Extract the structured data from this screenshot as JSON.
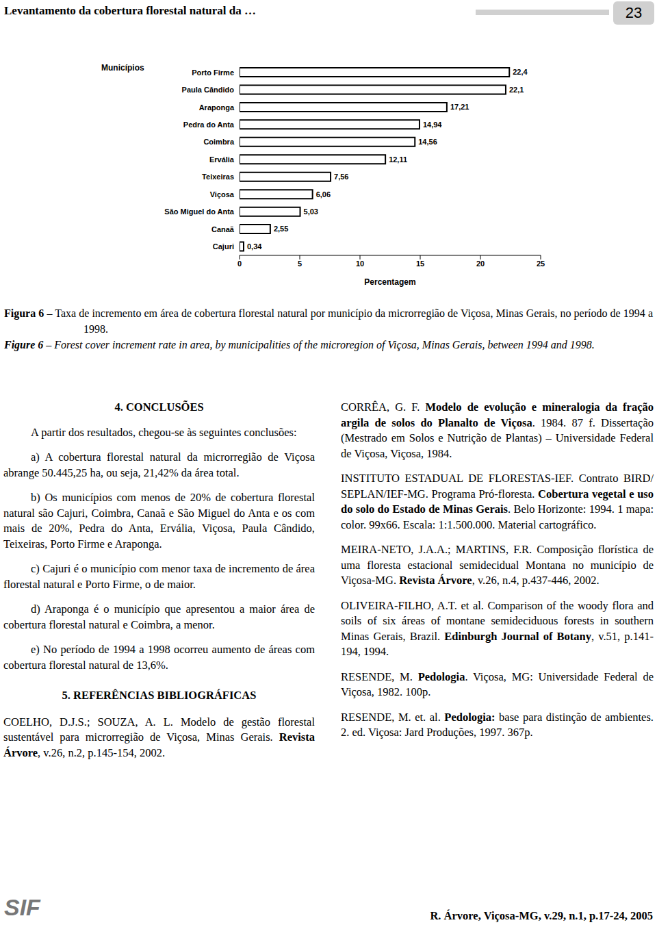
{
  "header": {
    "running_title": "Levantamento da cobertura florestal natural da …",
    "page": 23
  },
  "chart_data": {
    "type": "bar",
    "orientation": "horizontal",
    "ylabel": "Municípios",
    "xlabel": "Percentagem",
    "categories": [
      "Porto Firme",
      "Paula Cândido",
      "Araponga",
      "Pedra do Anta",
      "Coimbra",
      "Ervália",
      "Teixeiras",
      "Viçosa",
      "São Miguel do Anta",
      "Canaã",
      "Cajuri"
    ],
    "values": [
      22.4,
      22.1,
      17.21,
      14.94,
      14.56,
      12.11,
      7.56,
      6.06,
      5.03,
      2.55,
      0.34
    ],
    "value_labels": [
      "22,4",
      "22,1",
      "17,21",
      "14,94",
      "14,56",
      "12,11",
      "7,56",
      "6,06",
      "5,03",
      "2,55",
      "0,34"
    ],
    "data_labels": true,
    "color": "#000000",
    "xlim": [
      0,
      25
    ],
    "xticks": [
      0,
      5,
      10,
      15,
      20,
      25
    ],
    "grid": false
  },
  "caption": {
    "pt_label": "Figura 6",
    "pt_text": " – Taxa de incremento em área de cobertura florestal natural por município da microrregião de Viçosa, Minas Gerais, no período de 1994 a 1998.",
    "en_label": "Figure 6",
    "en_text": " – Forest cover increment rate in area, by municipalities of the microregion of Viçosa, Minas Gerais, between 1994 and 1998."
  },
  "conclusions": {
    "heading": "4. CONCLUSÕES",
    "intro": "A partir dos resultados, chegou-se às seguintes conclusões:",
    "items": [
      "a) A cobertura florestal natural da microrregião de Viçosa abrange 50.445,25 ha, ou seja, 21,42% da área total.",
      "b) Os municípios com menos de 20% de cobertura florestal natural são Cajuri, Coimbra, Canaã e São Miguel do Anta e os com mais de 20%, Pedra do Anta, Ervália, Viçosa, Paula Cândido, Teixeiras, Porto Firme e Araponga.",
      "c) Cajuri é o município com menor taxa de incremento de área florestal natural e Porto Firme, o de maior.",
      "d) Araponga é o município que apresentou a maior área de cobertura florestal natural e Coimbra, a menor.",
      "e) No período de 1994 a 1998 ocorreu aumento de áreas com cobertura florestal natural de 13,6%."
    ]
  },
  "references": {
    "heading": "5. REFERÊNCIAS BIBLIOGRÁFICAS",
    "left": [
      [
        {
          "text": "COELHO, D.J.S.; SOUZA, A. L. Modelo de gestão florestal sustentável para microrregião de Viçosa, Minas Gerais. ",
          "bold": false
        },
        {
          "text": "Revista Árvore",
          "bold": true
        },
        {
          "text": ", v.26, n.2, p.145-154, 2002.",
          "bold": false
        }
      ]
    ],
    "right": [
      [
        {
          "text": "CORRÊA, G. F. ",
          "bold": false
        },
        {
          "text": "Modelo de evolução e mineralogia da fração argila de solos do Planalto de Viçosa",
          "bold": true
        },
        {
          "text": ". 1984. 87 f. Dissertação (Mestrado em Solos e Nutrição de Plantas) – Universidade Federal de Viçosa, Viçosa, 1984.",
          "bold": false
        }
      ],
      [
        {
          "text": "INSTITUTO ESTADUAL DE FLORESTAS-IEF. Contrato BIRD/ SEPLAN/IEF-MG. Programa Pró-floresta. ",
          "bold": false
        },
        {
          "text": "Cobertura vegetal e uso do solo do Estado de Minas Gerais",
          "bold": true
        },
        {
          "text": ". Belo Horizonte: 1994. 1 mapa: color. 99x66. Escala: 1:1.500.000. Material cartográfico.",
          "bold": false
        }
      ],
      [
        {
          "text": "MEIRA-NETO, J.A.A.; MARTINS, F.R. Composição florística de uma floresta estacional semidecidual Montana no município de Viçosa-MG. ",
          "bold": false
        },
        {
          "text": "Revista Árvore",
          "bold": true
        },
        {
          "text": ", v.26, n.4, p.437-446, 2002.",
          "bold": false
        }
      ],
      [
        {
          "text": "OLIVEIRA-FILHO, A.T. et al. Comparison of the woody flora and soils of six áreas of montane semideciduous forests in southern Minas Gerais, Brazil. ",
          "bold": false
        },
        {
          "text": "Edinburgh Journal of Botany",
          "bold": true
        },
        {
          "text": ", v.51, p.141-194, 1994.",
          "bold": false
        }
      ],
      [
        {
          "text": "RESENDE, M. ",
          "bold": false
        },
        {
          "text": "Pedologia",
          "bold": true
        },
        {
          "text": ". Viçosa, MG: Universidade Federal de Viçosa, 1982. 100p.",
          "bold": false
        }
      ],
      [
        {
          "text": "RESENDE, M. et. al. ",
          "bold": false
        },
        {
          "text": "Pedologia:",
          "bold": true
        },
        {
          "text": " base para distinção de ambientes. 2. ed. Viçosa: Jard Produções, 1997. 367p.",
          "bold": false
        }
      ]
    ]
  },
  "footer": {
    "logo": "SIF",
    "citation": "R. Árvore, Viçosa-MG, v.29, n.1, p.17-24, 2005"
  }
}
